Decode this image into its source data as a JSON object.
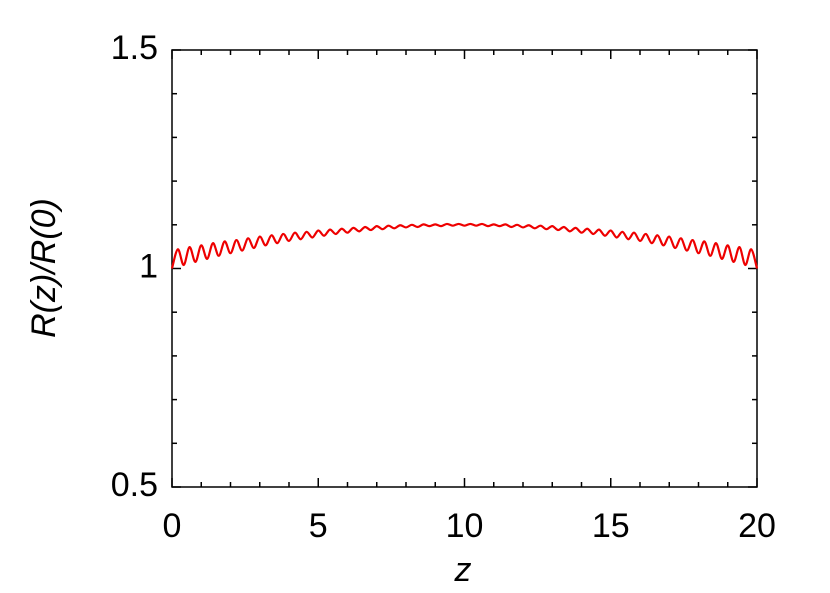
{
  "chart_data": {
    "type": "line",
    "xlabel": "z",
    "ylabel": "R(z)/R(0)",
    "xlim": [
      0,
      20
    ],
    "ylim": [
      0.5,
      1.5
    ],
    "xticks": [
      0,
      5,
      10,
      15,
      20
    ],
    "yticks": [
      0.5,
      1,
      1.5
    ],
    "xminorticks": [
      1,
      2,
      3,
      4,
      6,
      7,
      8,
      9,
      11,
      12,
      13,
      14,
      16,
      17,
      18,
      19
    ],
    "yminorticks": [
      0.6,
      0.7,
      0.8,
      0.9,
      1.1,
      1.2,
      1.3,
      1.4
    ],
    "grid": false,
    "x": [
      0,
      0.2,
      0.4,
      0.6,
      0.8,
      1,
      1.2,
      1.4,
      1.6,
      1.8,
      2,
      2.2,
      2.4,
      2.6,
      2.8,
      3,
      3.2,
      3.4,
      3.6,
      3.8,
      4,
      4.2,
      4.4,
      4.6,
      4.8,
      5,
      5.2,
      5.4,
      5.6,
      5.8,
      6,
      6.2,
      6.4,
      6.6,
      6.8,
      7,
      7.2,
      7.4,
      7.6,
      7.8,
      8,
      8.2,
      8.4,
      8.6,
      8.8,
      9,
      9.2,
      9.4,
      9.6,
      9.8,
      10,
      10.2,
      10.4,
      10.6,
      10.8,
      11,
      11.2,
      11.4,
      11.6,
      11.8,
      12,
      12.2,
      12.4,
      12.6,
      12.8,
      13,
      13.2,
      13.4,
      13.6,
      13.8,
      14,
      14.2,
      14.4,
      14.6,
      14.8,
      15,
      15.2,
      15.4,
      15.6,
      15.8,
      16,
      16.2,
      16.4,
      16.6,
      16.8,
      17,
      17.2,
      17.4,
      17.6,
      17.8,
      18,
      18.2,
      18.4,
      18.6,
      18.8,
      19,
      19.2,
      19.4,
      19.6,
      19.8,
      20
    ],
    "series": [
      {
        "color": "#ee0000",
        "values": [
          1.0,
          1.044,
          1.008,
          1.049,
          1.015,
          1.053,
          1.022,
          1.058,
          1.029,
          1.062,
          1.035,
          1.065,
          1.041,
          1.069,
          1.047,
          1.073,
          1.053,
          1.076,
          1.058,
          1.079,
          1.063,
          1.082,
          1.067,
          1.084,
          1.071,
          1.087,
          1.075,
          1.089,
          1.079,
          1.091,
          1.082,
          1.093,
          1.085,
          1.095,
          1.088,
          1.097,
          1.09,
          1.098,
          1.092,
          1.099,
          1.094,
          1.1,
          1.095,
          1.101,
          1.097,
          1.101,
          1.097,
          1.102,
          1.098,
          1.102,
          1.098,
          1.102,
          1.098,
          1.102,
          1.097,
          1.101,
          1.097,
          1.101,
          1.095,
          1.1,
          1.094,
          1.099,
          1.092,
          1.098,
          1.09,
          1.097,
          1.088,
          1.095,
          1.085,
          1.093,
          1.082,
          1.091,
          1.079,
          1.089,
          1.075,
          1.087,
          1.071,
          1.084,
          1.067,
          1.082,
          1.063,
          1.079,
          1.058,
          1.076,
          1.053,
          1.073,
          1.047,
          1.069,
          1.041,
          1.065,
          1.035,
          1.062,
          1.029,
          1.058,
          1.022,
          1.053,
          1.015,
          1.049,
          1.008,
          1.044,
          1.0
        ]
      }
    ]
  }
}
